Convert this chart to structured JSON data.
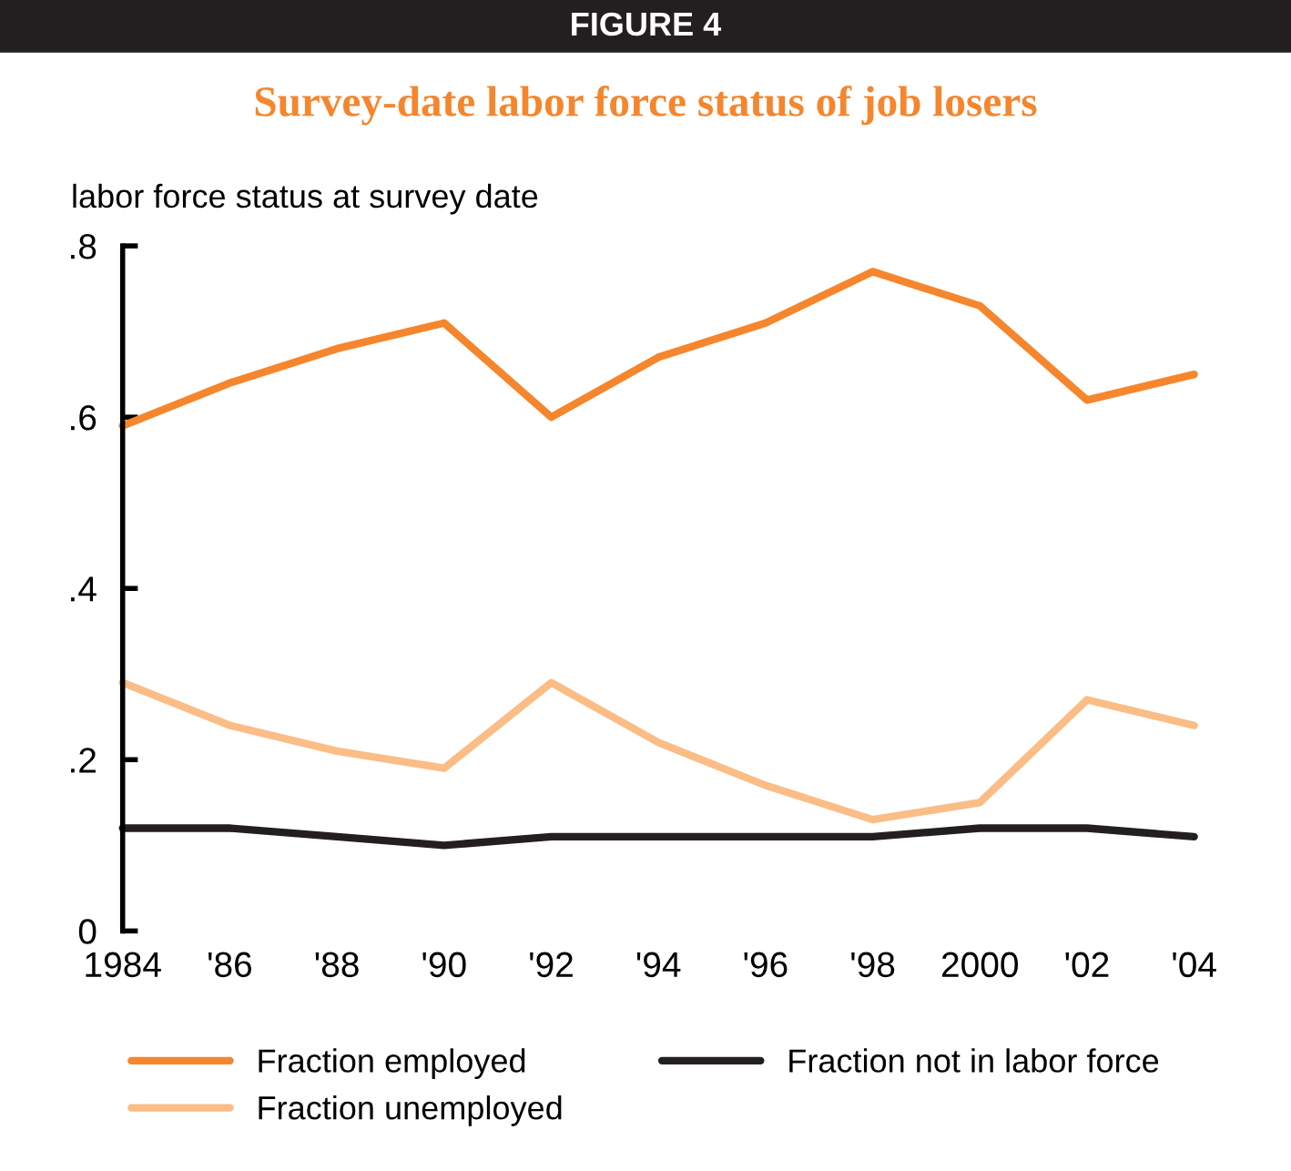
{
  "chart_data": {
    "type": "line",
    "title": "FIGURE 4",
    "subtitle": "Survey-date labor force status of job losers",
    "ylabel": "labor force status at survey date",
    "x": [
      1984,
      1986,
      1988,
      1990,
      1992,
      1994,
      1996,
      1998,
      2000,
      2002,
      2004
    ],
    "series": [
      {
        "name": "Fraction employed",
        "color": "#f5862d",
        "values": [
          0.59,
          0.64,
          0.68,
          0.71,
          0.6,
          0.67,
          0.71,
          0.77,
          0.73,
          0.62,
          0.65
        ]
      },
      {
        "name": "Fraction unemployed",
        "color": "#fbbd86",
        "values": [
          0.29,
          0.24,
          0.21,
          0.19,
          0.29,
          0.22,
          0.17,
          0.13,
          0.15,
          0.27,
          0.24
        ]
      },
      {
        "name": "Fraction not in labor force",
        "color": "#231f20",
        "values": [
          0.12,
          0.12,
          0.11,
          0.1,
          0.11,
          0.11,
          0.11,
          0.11,
          0.12,
          0.12,
          0.11
        ]
      }
    ],
    "xlim": [
      1984,
      2004
    ],
    "xticks": [
      1984,
      {
        "value": 1986,
        "label": "'86"
      },
      {
        "value": 1988,
        "label": "'88"
      },
      {
        "value": 1990,
        "label": "'90"
      },
      {
        "value": 1992,
        "label": "'92"
      },
      {
        "value": 1994,
        "label": "'94"
      },
      {
        "value": 1996,
        "label": "'96"
      },
      {
        "value": 1998,
        "label": "'98"
      },
      2000,
      {
        "value": 2002,
        "label": "'02"
      },
      {
        "value": 2004,
        "label": "'04"
      }
    ],
    "ylim": [
      0,
      0.8
    ],
    "yticks": [
      0,
      {
        "value": 0.2,
        "label": ".2"
      },
      {
        "value": 0.4,
        "label": ".4"
      },
      {
        "value": 0.6,
        "label": ".6"
      },
      {
        "value": 0.8,
        "label": ".8"
      }
    ],
    "grid": false,
    "legend": "bottom",
    "marker": "none",
    "line_style": "solid"
  }
}
